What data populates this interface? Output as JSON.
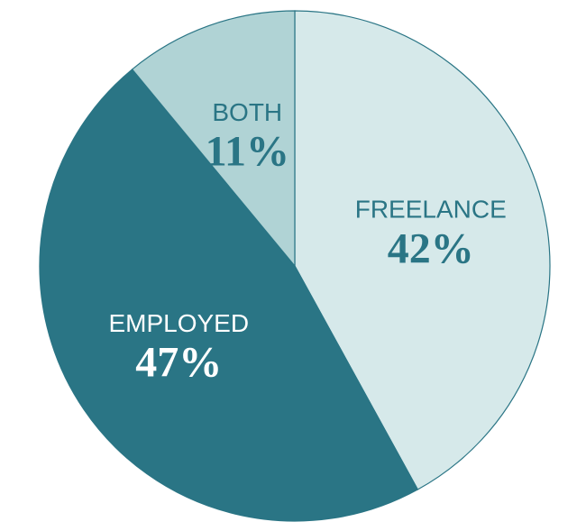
{
  "chart_data": {
    "type": "pie",
    "categories": [
      "FREELANCE",
      "EMPLOYED",
      "BOTH"
    ],
    "values": [
      42,
      47,
      11
    ],
    "value_labels": [
      "42%",
      "47%",
      "11%"
    ],
    "colors": [
      "#d6e9ea",
      "#2a7585",
      "#b0d3d5"
    ],
    "label_colors": [
      "#2a7585",
      "#ffffff",
      "#2a7585"
    ]
  }
}
